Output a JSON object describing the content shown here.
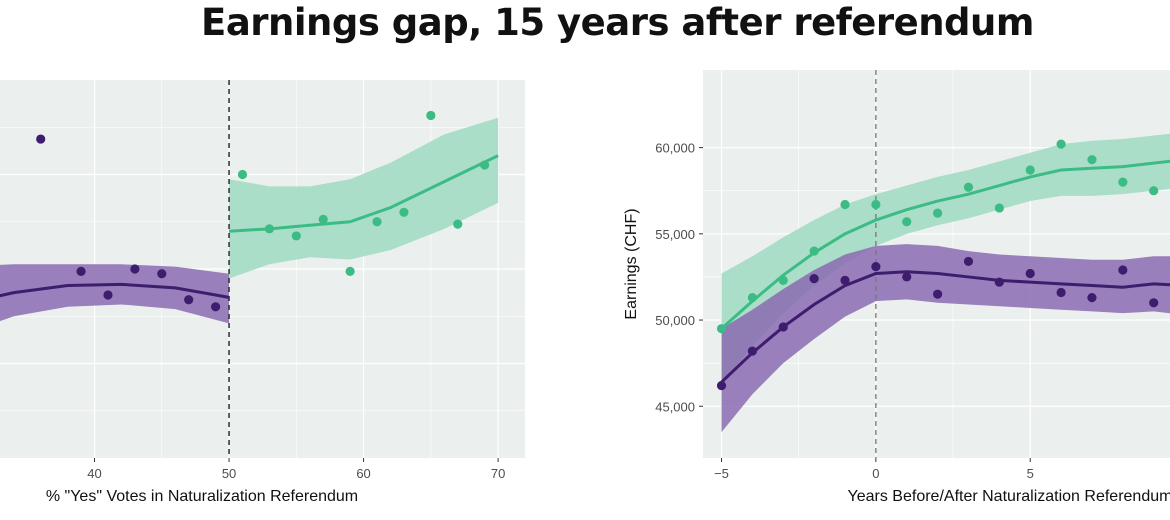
{
  "title": "Earnings gap,  15 years after referendum",
  "colors": {
    "green": "#3cbc85",
    "purple": "#3e1d6e",
    "green_band": "#a3dcc4",
    "purple_band": "#8b6bb2",
    "panel_bg": "#ebf0ee",
    "grid": "#ffffff"
  },
  "chart_data": [
    {
      "type": "scatter",
      "xlabel": "% \"Yes\" Votes in Naturalization Referendum",
      "ylabel": "",
      "xlim": [
        30,
        72
      ],
      "ylim": [
        -0.6,
        1.0
      ],
      "x_ticks": [
        40,
        50,
        60,
        70
      ],
      "x_tick_labels": [
        "40",
        "50",
        "60",
        "70"
      ],
      "cutoff": 50,
      "series": [
        {
          "color": "purple",
          "points": [
            [
              36,
              0.75
            ],
            [
              39,
              0.19
            ],
            [
              41,
              0.09
            ],
            [
              43,
              0.2
            ],
            [
              45,
              0.18
            ],
            [
              47,
              0.07
            ],
            [
              49,
              0.04
            ]
          ],
          "fit": [
            [
              30,
              0.05
            ],
            [
              34,
              0.1
            ],
            [
              38,
              0.13
            ],
            [
              42,
              0.135
            ],
            [
              46,
              0.12
            ],
            [
              50,
              0.08
            ]
          ],
          "band_upper": [
            [
              30,
              0.21
            ],
            [
              34,
              0.22
            ],
            [
              38,
              0.22
            ],
            [
              42,
              0.22
            ],
            [
              46,
              0.21
            ],
            [
              50,
              0.18
            ]
          ],
          "band_lower": [
            [
              30,
              -0.08
            ],
            [
              34,
              0.0
            ],
            [
              38,
              0.04
            ],
            [
              42,
              0.05
            ],
            [
              46,
              0.03
            ],
            [
              50,
              -0.03
            ]
          ]
        },
        {
          "color": "green",
          "points": [
            [
              51,
              0.6
            ],
            [
              53,
              0.37
            ],
            [
              55,
              0.34
            ],
            [
              57,
              0.41
            ],
            [
              59,
              0.19
            ],
            [
              61,
              0.4
            ],
            [
              63,
              0.44
            ],
            [
              65,
              0.85
            ],
            [
              67,
              0.39
            ],
            [
              69,
              0.64
            ]
          ],
          "fit": [
            [
              50,
              0.36
            ],
            [
              53,
              0.37
            ],
            [
              56,
              0.385
            ],
            [
              59,
              0.4
            ],
            [
              62,
              0.46
            ],
            [
              66,
              0.57
            ],
            [
              70,
              0.68
            ]
          ],
          "band_upper": [
            [
              50,
              0.58
            ],
            [
              53,
              0.55
            ],
            [
              56,
              0.55
            ],
            [
              59,
              0.58
            ],
            [
              62,
              0.65
            ],
            [
              66,
              0.77
            ],
            [
              70,
              0.84
            ]
          ],
          "band_lower": [
            [
              50,
              0.16
            ],
            [
              53,
              0.22
            ],
            [
              56,
              0.25
            ],
            [
              59,
              0.24
            ],
            [
              62,
              0.28
            ],
            [
              66,
              0.37
            ],
            [
              70,
              0.48
            ]
          ]
        }
      ]
    },
    {
      "type": "scatter",
      "xlabel": "Years Before/After Naturalization Referendum",
      "ylabel": "Earnings (CHF)",
      "xlim": [
        -5.6,
        10.5
      ],
      "ylim": [
        42000,
        64500
      ],
      "x_ticks": [
        -5,
        0,
        5
      ],
      "x_tick_labels": [
        "−5",
        "0",
        "5"
      ],
      "y_ticks": [
        45000,
        50000,
        55000,
        60000
      ],
      "y_tick_labels": [
        "45,000",
        "50,000",
        "55,000",
        "60,000"
      ],
      "cutoff": 0,
      "series": [
        {
          "color": "green",
          "points": [
            [
              -5,
              49500
            ],
            [
              -4,
              51300
            ],
            [
              -3,
              52300
            ],
            [
              -2,
              54000
            ],
            [
              -1,
              56700
            ],
            [
              0,
              56700
            ],
            [
              1,
              55700
            ],
            [
              2,
              56200
            ],
            [
              3,
              57700
            ],
            [
              4,
              56500
            ],
            [
              5,
              58700
            ],
            [
              6,
              60200
            ],
            [
              7,
              59300
            ],
            [
              8,
              58000
            ],
            [
              9,
              57500
            ]
          ],
          "fit": [
            [
              -5,
              49500
            ],
            [
              -4,
              51100
            ],
            [
              -3,
              52600
            ],
            [
              -2,
              53900
            ],
            [
              -1,
              55000
            ],
            [
              0,
              55800
            ],
            [
              1,
              56400
            ],
            [
              2,
              56900
            ],
            [
              3,
              57300
            ],
            [
              4,
              57800
            ],
            [
              5,
              58300
            ],
            [
              6,
              58700
            ],
            [
              7,
              58800
            ],
            [
              8,
              58900
            ],
            [
              9,
              59100
            ],
            [
              10,
              59300
            ]
          ],
          "band_upper": [
            [
              -5,
              52700
            ],
            [
              -4,
              53700
            ],
            [
              -3,
              54800
            ],
            [
              -2,
              55800
            ],
            [
              -1,
              56700
            ],
            [
              0,
              57300
            ],
            [
              1,
              57800
            ],
            [
              2,
              58300
            ],
            [
              3,
              58700
            ],
            [
              4,
              59200
            ],
            [
              5,
              59700
            ],
            [
              6,
              60200
            ],
            [
              7,
              60400
            ],
            [
              8,
              60500
            ],
            [
              9,
              60700
            ],
            [
              10,
              60900
            ]
          ],
          "band_lower": [
            [
              -5,
              46300
            ],
            [
              -4,
              48500
            ],
            [
              -3,
              50400
            ],
            [
              -2,
              52000
            ],
            [
              -1,
              53300
            ],
            [
              0,
              54300
            ],
            [
              1,
              55000
            ],
            [
              2,
              55500
            ],
            [
              3,
              55900
            ],
            [
              4,
              56400
            ],
            [
              5,
              56900
            ],
            [
              6,
              57200
            ],
            [
              7,
              57200
            ],
            [
              8,
              57300
            ],
            [
              9,
              57500
            ],
            [
              10,
              57700
            ]
          ]
        },
        {
          "color": "purple",
          "points": [
            [
              -5,
              46200
            ],
            [
              -4,
              48200
            ],
            [
              -3,
              49600
            ],
            [
              -2,
              52400
            ],
            [
              -1,
              52300
            ],
            [
              0,
              53100
            ],
            [
              1,
              52500
            ],
            [
              2,
              51500
            ],
            [
              3,
              53400
            ],
            [
              4,
              52200
            ],
            [
              5,
              52700
            ],
            [
              6,
              51600
            ],
            [
              7,
              51300
            ],
            [
              8,
              52900
            ],
            [
              9,
              51000
            ]
          ],
          "fit": [
            [
              -5,
              46400
            ],
            [
              -4,
              48100
            ],
            [
              -3,
              49600
            ],
            [
              -2,
              50900
            ],
            [
              -1,
              52000
            ],
            [
              0,
              52700
            ],
            [
              1,
              52800
            ],
            [
              2,
              52700
            ],
            [
              3,
              52500
            ],
            [
              4,
              52300
            ],
            [
              5,
              52200
            ],
            [
              6,
              52100
            ],
            [
              7,
              52000
            ],
            [
              8,
              51900
            ],
            [
              9,
              52100
            ],
            [
              10,
              52000
            ]
          ],
          "band_upper": [
            [
              -5,
              49500
            ],
            [
              -4,
              50600
            ],
            [
              -3,
              51800
            ],
            [
              -2,
              52900
            ],
            [
              -1,
              53800
            ],
            [
              0,
              54300
            ],
            [
              1,
              54400
            ],
            [
              2,
              54300
            ],
            [
              3,
              54000
            ],
            [
              4,
              53800
            ],
            [
              5,
              53700
            ],
            [
              6,
              53600
            ],
            [
              7,
              53500
            ],
            [
              8,
              53500
            ],
            [
              9,
              53700
            ],
            [
              10,
              53700
            ]
          ],
          "band_lower": [
            [
              -5,
              43500
            ],
            [
              -4,
              45700
            ],
            [
              -3,
              47500
            ],
            [
              -2,
              48900
            ],
            [
              -1,
              50200
            ],
            [
              0,
              51100
            ],
            [
              1,
              51200
            ],
            [
              2,
              51000
            ],
            [
              3,
              50900
            ],
            [
              4,
              50800
            ],
            [
              5,
              50700
            ],
            [
              6,
              50600
            ],
            [
              7,
              50500
            ],
            [
              8,
              50400
            ],
            [
              9,
              50500
            ],
            [
              10,
              50300
            ]
          ]
        }
      ]
    }
  ]
}
